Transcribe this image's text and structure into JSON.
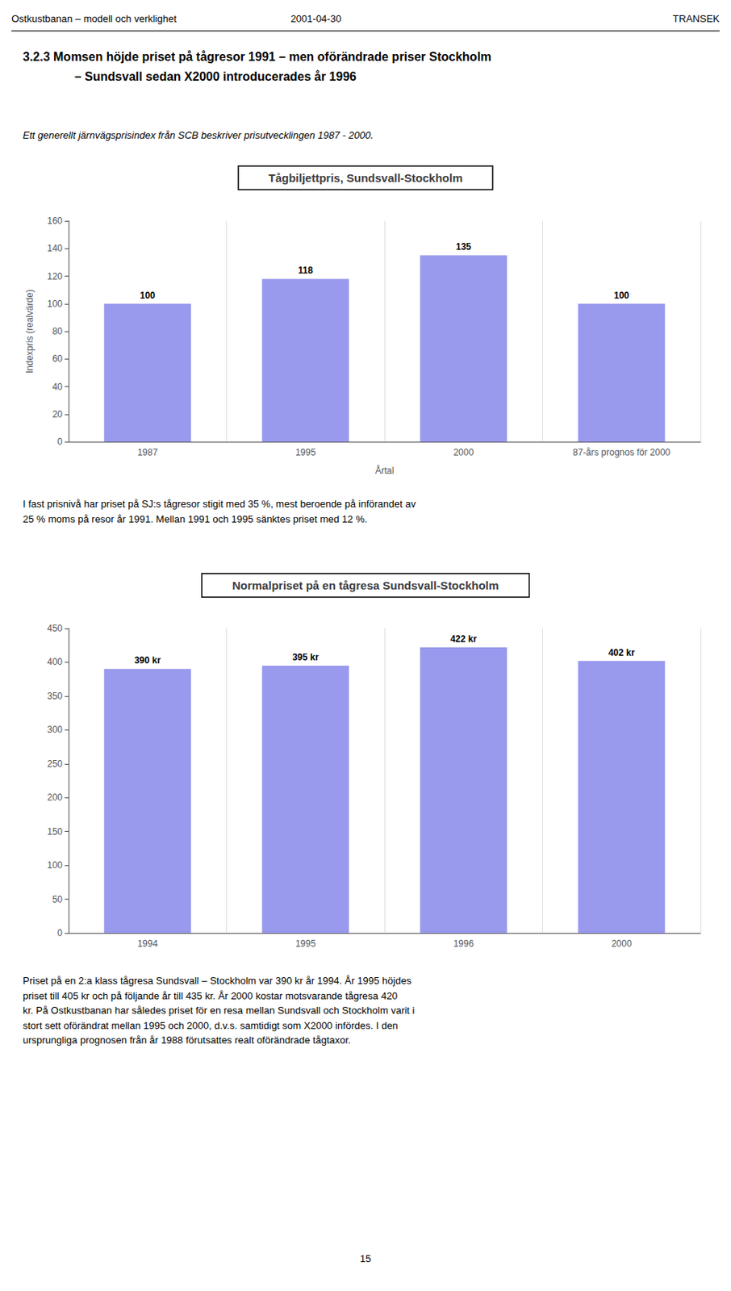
{
  "header": [
    "Ostkustbanan – modell och verklighet",
    "2001-04-30",
    "TRANSEK"
  ],
  "section_title": [
    "3.2.3   Momsen höjde priset på tågresor 1991 – men oförändrade priser Stockholm",
    "– Sundsvall sedan X2000 introducerades år 1996"
  ],
  "intro": "Ett generellt järnvägsprisindex från SCB beskriver prisutvecklingen 1987 - 2000.",
  "paragraphs": [
    [
      "I fast prisnivå har priset på SJ:s tågresor stigit med 35 %, mest beroende på införandet av",
      "25 % moms på resor år 1991. Mellan 1991 och 1995 sänktes priset med 12 %."
    ],
    [
      "Priset på en 2:a klass tågresa Sundsvall – Stockholm var 390 kr år 1994. År 1995 höjdes",
      "priset till 405 kr och på följande år till 435 kr. År 2000 kostar motsvarande tågresa 420",
      "kr. På Ostkustbanan har således priset för en resa mellan Sundsvall och Stockholm varit i",
      "stort sett oförändrat mellan 1995 och 2000, d.v.s. samtidigt som X2000 infördes. I den",
      "ursprungliga prognosen från år 1988 förutsattes realt oförändrade tågtaxor."
    ]
  ],
  "footer": "15",
  "chart_data": [
    {
      "type": "bar",
      "title": "Tågbiljettpris, Sundsvall-Stockholm",
      "xlabel": "Årtal",
      "ylabel": "Indexpris (realvärde)",
      "categories": [
        "1987",
        "1995",
        "2000",
        "87-års prognos för 2000"
      ],
      "values": [
        100,
        118,
        135,
        100
      ],
      "color": "#9999EE",
      "ylim": [
        0,
        160
      ],
      "yticks": [
        0,
        20,
        40,
        60,
        80,
        100,
        120,
        140,
        160
      ],
      "grid": "x",
      "data_labels": true
    },
    {
      "type": "bar",
      "title": "Normalpriset på en tågresa Sundsvall-Stockholm",
      "categories": [
        "1994",
        "1995",
        "1996",
        "2000"
      ],
      "values": [
        390,
        395,
        422,
        402
      ],
      "value_labels": [
        "390 kr",
        "395 kr",
        "422 kr",
        "402 kr"
      ],
      "color": "#9999EE",
      "ylim": [
        0,
        450
      ],
      "yticks": [
        0,
        50,
        100,
        150,
        200,
        250,
        300,
        350,
        400,
        450
      ],
      "grid": "x",
      "data_labels": true
    }
  ]
}
